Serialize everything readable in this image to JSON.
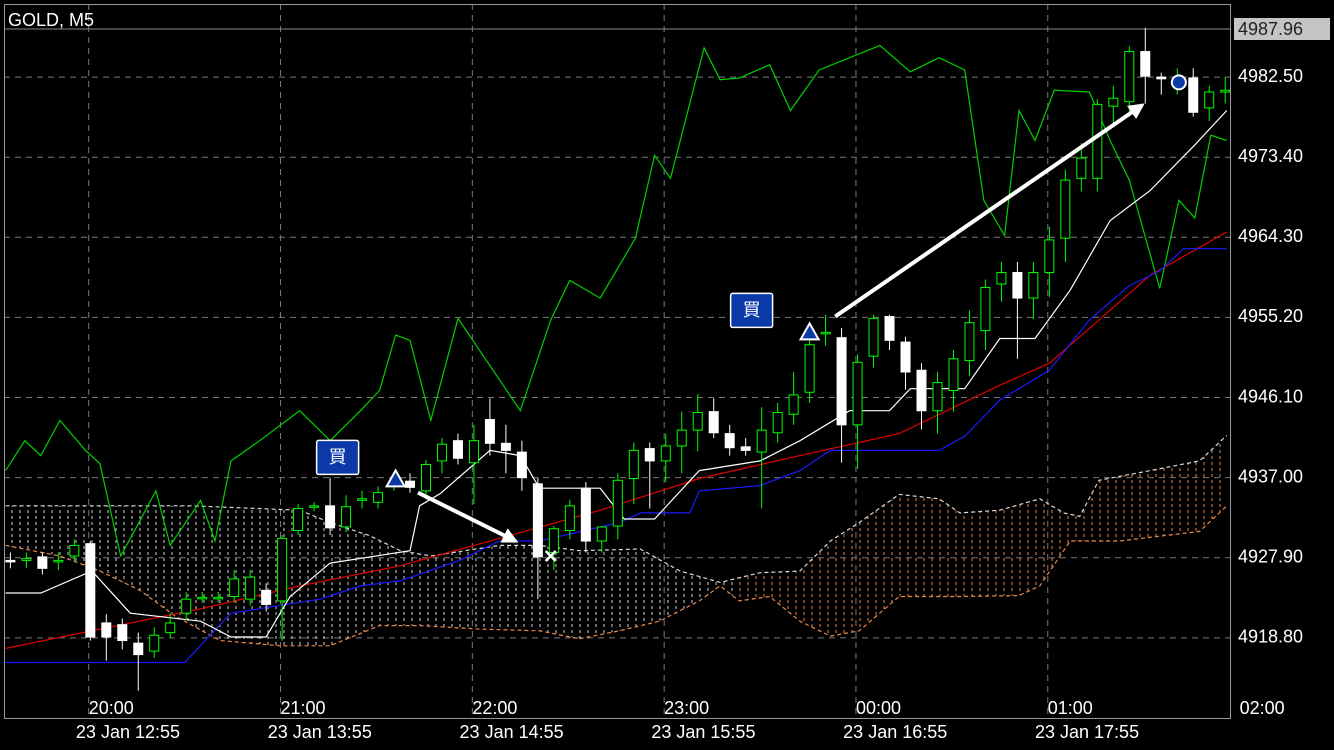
{
  "chart_data": {
    "type": "candlestick",
    "title": "GOLD, M5",
    "xlim": [
      -0.4,
      76.3
    ],
    "ylim": [
      4909.7,
      4990.8
    ],
    "yticks": [
      {
        "value": 4918.8,
        "label": "4918.80"
      },
      {
        "value": 4927.9,
        "label": "4927.90"
      },
      {
        "value": 4937,
        "label": "4937.00"
      },
      {
        "value": 4946.1,
        "label": "4946.10"
      },
      {
        "value": 4955.2,
        "label": "4955.20"
      },
      {
        "value": 4964.3,
        "label": "4964.30"
      },
      {
        "value": 4973.4,
        "label": "4973.40"
      },
      {
        "value": 4982.5,
        "label": "4982.50"
      }
    ],
    "xticks": [
      {
        "value": 4.9,
        "label": "20:00"
      },
      {
        "value": 16.9,
        "label": "21:00"
      },
      {
        "value": 28.9,
        "label": "22:00"
      },
      {
        "value": 40.9,
        "label": "23:00"
      },
      {
        "value": 52.9,
        "label": "00:00"
      },
      {
        "value": 64.9,
        "label": "01:00"
      },
      {
        "value": 76.9,
        "label": "02:00"
      }
    ],
    "date_labels": [
      {
        "value": 4.1,
        "label": "23 Jan 12:55"
      },
      {
        "value": 16.1,
        "label": "23 Jan 13:55"
      },
      {
        "value": 28.1,
        "label": "23 Jan 14:55"
      },
      {
        "value": 40.1,
        "label": "23 Jan 15:55"
      },
      {
        "value": 52.1,
        "label": "23 Jan 16:55"
      },
      {
        "value": 64.1,
        "label": "23 Jan 17:55"
      }
    ],
    "grid": true,
    "price_marker": 4987.96,
    "up_color": "#00ff00",
    "down_color": "#ffffff",
    "candles": {
      "x": [
        0,
        1,
        2,
        3,
        4,
        5,
        6,
        7,
        8,
        9,
        10,
        11,
        12,
        13,
        14,
        15,
        16,
        17,
        18,
        19,
        20,
        21,
        22,
        23,
        24,
        25,
        26,
        27,
        28,
        29,
        30,
        31,
        32,
        33,
        34,
        35,
        36,
        37,
        38,
        39,
        40,
        41,
        42,
        43,
        44,
        45,
        46,
        47,
        48,
        49,
        50,
        51,
        52,
        53,
        54,
        55,
        56,
        57,
        58,
        59,
        60,
        61,
        62,
        63,
        64,
        65,
        66,
        67,
        68,
        69,
        70,
        71,
        72,
        73,
        74,
        75,
        76
      ],
      "open": [
        4927.6,
        4927.6,
        4928.0,
        4927.5,
        4928.1,
        4929.5,
        4920.5,
        4920.3,
        4918.2,
        4917.3,
        4919.4,
        4921.6,
        4923.3,
        4923.4,
        4923.5,
        4923.2,
        4924.2,
        4923.0,
        4931.0,
        4933.7,
        4933.8,
        4931.4,
        4934.5,
        4934.2,
        4936.2,
        4936.6,
        4935.5,
        4938.9,
        4941.2,
        4938.7,
        4943.6,
        4940.9,
        4939.9,
        4936.3,
        4928.5,
        4931.0,
        4935.8,
        4929.8,
        4931.5,
        4936.9,
        4940.3,
        4938.9,
        4940.6,
        4942.4,
        4944.5,
        4942.0,
        4940.5,
        4939.9,
        4942.1,
        4944.2,
        4946.7,
        4953.4,
        4952.9,
        4943.0,
        4950.8,
        4955.3,
        4952.4,
        4949.2,
        4944.6,
        4946.9,
        4950.3,
        4953.7,
        4959.0,
        4960.3,
        4957.4,
        4960.3,
        4964.2,
        4971.0,
        4971.0,
        4979.2,
        4979.7,
        4985.4,
        4982.5,
        4982.1,
        4982.4,
        4979.0,
        4980.8
      ],
      "high": [
        4928.5,
        4928.5,
        4928.5,
        4928.5,
        4930.0,
        4929.8,
        4921.5,
        4921.0,
        4919.4,
        4920.0,
        4921.6,
        4924.0,
        4924.0,
        4924.0,
        4926.5,
        4926.5,
        4925.0,
        4930.5,
        4934.0,
        4934.2,
        4937.0,
        4935.0,
        4935.5,
        4936.0,
        4937.0,
        4937.5,
        4939.0,
        4941.5,
        4942.0,
        4943.0,
        4946.0,
        4943.0,
        4941.2,
        4937.0,
        4931.5,
        4934.5,
        4936.5,
        4931.5,
        4937.5,
        4941.0,
        4941.0,
        4942.0,
        4944.5,
        4946.5,
        4946.0,
        4943.0,
        4941.5,
        4945.0,
        4945.5,
        4949.0,
        4953.0,
        4955.5,
        4954.0,
        4951.0,
        4955.5,
        4955.5,
        4953.0,
        4950.0,
        4949.0,
        4951.5,
        4956.0,
        4959.5,
        4961.5,
        4961.5,
        4961.5,
        4965.5,
        4972.0,
        4975.0,
        4980.0,
        4981.5,
        4986.0,
        4988.1,
        4983.0,
        4983.5,
        4983.5,
        4981.5,
        4982.5
      ],
      "low": [
        4926.7,
        4926.7,
        4926.0,
        4926.5,
        4927.5,
        4918.5,
        4916.2,
        4917.5,
        4912.8,
        4916.5,
        4918.8,
        4920.8,
        4922.8,
        4922.8,
        4922.8,
        4922.5,
        4921.8,
        4918.5,
        4930.5,
        4933.2,
        4930.5,
        4930.8,
        4933.5,
        4933.5,
        4935.5,
        4935.3,
        4934.5,
        4937.5,
        4938.5,
        4934.0,
        4939.5,
        4937.5,
        4935.5,
        4923.2,
        4926.5,
        4930.0,
        4928.5,
        4928.5,
        4930.0,
        4934.0,
        4933.5,
        4936.5,
        4937.5,
        4940.0,
        4941.5,
        4939.5,
        4939.5,
        4933.5,
        4941.0,
        4943.0,
        4945.5,
        4952.0,
        4938.7,
        4938.0,
        4949.5,
        4951.5,
        4947.0,
        4942.5,
        4942.0,
        4944.5,
        4948.5,
        4951.5,
        4957.0,
        4950.5,
        4955.0,
        4957.5,
        4961.5,
        4969.5,
        4969.5,
        4977.0,
        4978.0,
        4979.5,
        4980.5,
        4980.5,
        4978.0,
        4977.5,
        4979.5
      ],
      "close": [
        4927.5,
        4927.8,
        4926.7,
        4927.6,
        4929.3,
        4918.9,
        4918.9,
        4918.5,
        4916.9,
        4919.1,
        4920.5,
        4923.2,
        4923.4,
        4923.4,
        4925.5,
        4925.7,
        4922.6,
        4930.1,
        4933.5,
        4933.8,
        4931.3,
        4933.7,
        4934.6,
        4935.3,
        4936.3,
        4935.9,
        4938.5,
        4940.8,
        4939.2,
        4941.2,
        4940.9,
        4940.1,
        4937.0,
        4928.0,
        4931.2,
        4933.8,
        4929.8,
        4931.4,
        4936.7,
        4940.1,
        4938.9,
        4940.6,
        4942.4,
        4944.4,
        4942.1,
        4940.4,
        4940.1,
        4942.4,
        4944.4,
        4946.4,
        4952.1,
        4953.5,
        4943.0,
        4950.1,
        4955.1,
        4952.6,
        4949.0,
        4944.6,
        4947.8,
        4950.5,
        4954.6,
        4958.6,
        4960.3,
        4957.4,
        4960.3,
        4964.0,
        4970.8,
        4973.3,
        4979.4,
        4980.1,
        4985.4,
        4982.6,
        4982.3,
        4982.2,
        4978.5,
        4980.8,
        4981.0
      ]
    },
    "cloud": {
      "color": "#e8894a",
      "left_color": "#cfcfcf",
      "split": 45.6
    },
    "lines": [
      {
        "color": "#d9d9d9",
        "dashed": true,
        "x": [
          -0.3,
          11.3,
          18.1,
          20,
          22.5,
          24.4,
          26.3,
          30.6,
          33.1,
          35.6,
          39.4,
          41.9,
          44.4,
          46.9,
          49.4,
          51.3,
          53.1,
          55.6,
          58.1,
          59.4,
          61.9,
          64.4,
          65.9,
          66.9,
          68.1,
          71.3,
          74.4,
          76.1
        ],
        "values": [
          4933.8,
          4933.8,
          4933.3,
          4931.9,
          4930.4,
          4928.7,
          4928.1,
          4929.3,
          4929.3,
          4928.7,
          4928.9,
          4926.4,
          4925.1,
          4926.2,
          4926.4,
          4929.8,
          4931.9,
          4935.1,
          4934.6,
          4933.0,
          4933.3,
          4934.6,
          4933.0,
          4932.6,
          4936.7,
          4937.8,
          4938.9,
          4941.8
        ]
      },
      {
        "color": "#e8894a",
        "dashed": true,
        "x": [
          -0.3,
          3.1,
          5.6,
          8.1,
          10.3,
          13.1,
          16.9,
          20,
          23.1,
          25.6,
          29.4,
          33.1,
          35.6,
          38.1,
          40.6,
          43.1,
          44.4,
          45.6,
          47.5,
          49.4,
          51.3,
          53.1,
          55.6,
          59.4,
          63.1,
          64.4,
          66.3,
          69.4,
          74.4,
          76.1
        ],
        "values": [
          4929.3,
          4928.1,
          4926.4,
          4924.2,
          4921.3,
          4918.5,
          4917.9,
          4917.9,
          4920.2,
          4920.2,
          4919.8,
          4919.6,
          4918.7,
          4919.6,
          4920.7,
          4923.0,
          4924.7,
          4923.0,
          4923.5,
          4920.7,
          4919.0,
          4919.6,
          4923.5,
          4923.5,
          4923.6,
          4924.7,
          4929.8,
          4929.8,
          4930.9,
          4933.8
        ]
      },
      {
        "color": "#00d000",
        "x": [
          -0.3,
          0.9,
          1.9,
          3.1,
          4.7,
          5.6,
          6.9,
          8.1,
          9.1,
          10,
          11.9,
          12.8,
          13.8,
          15.6,
          18.1,
          20,
          21.9,
          23.1,
          24.1,
          25,
          26.3,
          28,
          31.9,
          33.8,
          35,
          36.9,
          39.1,
          40.3,
          41.3,
          43.4,
          44.4,
          45.6,
          47.5,
          48.8,
          50.6,
          54.4,
          56.3,
          58.1,
          59.7,
          60.9,
          62.2,
          63.1,
          64.1,
          65.3,
          67.5,
          68.8,
          70,
          71.9,
          73.1,
          74.1,
          75.1,
          76.1
        ],
        "values": [
          4937.8,
          4941.2,
          4939.5,
          4943.5,
          4940.1,
          4938.6,
          4928.1,
          4932.1,
          4935.5,
          4929.3,
          4934.4,
          4929.8,
          4938.9,
          4941.2,
          4944.6,
          4941.2,
          4944.6,
          4946.9,
          4953.2,
          4952.6,
          4943.5,
          4955.1,
          4944.6,
          4954.9,
          4959.4,
          4957.4,
          4964.2,
          4973.6,
          4971.0,
          4985.8,
          4982.2,
          4982.4,
          4983.9,
          4978.7,
          4983.3,
          4986.1,
          4983.1,
          4984.7,
          4983.3,
          4968.5,
          4964.5,
          4978.7,
          4975.3,
          4981.0,
          4980.8,
          4975.3,
          4970.8,
          4958.5,
          4968.5,
          4966.5,
          4975.9,
          4975.3
        ]
      },
      {
        "color": "#e00000",
        "x": [
          -0.3,
          5.6,
          11.9,
          18.1,
          24.4,
          30.6,
          36.9,
          43.1,
          49.4,
          55.6,
          61.9,
          65,
          68.1,
          71.3,
          76.1
        ],
        "values": [
          4917.6,
          4919.8,
          4922.1,
          4924.7,
          4927.0,
          4930.1,
          4933.3,
          4936.9,
          4939.5,
          4942.0,
          4947.5,
          4950.0,
          4954.9,
          4960.0,
          4964.9
        ]
      },
      {
        "color": "#1a1aff",
        "x": [
          -0.3,
          10.9,
          13.8,
          19.4,
          21.9,
          24.4,
          28.1,
          30.6,
          33.1,
          38.1,
          39.4,
          42.5,
          43.1,
          46.9,
          49.4,
          51.3,
          58.1,
          59.7,
          61.9,
          65,
          67.5,
          70,
          71.9,
          73.4,
          76.1
        ],
        "values": [
          4916.0,
          4916.0,
          4921.6,
          4923.2,
          4924.7,
          4925.3,
          4927.6,
          4929.8,
          4929.8,
          4931.9,
          4933.0,
          4933.0,
          4935.5,
          4936.1,
          4937.8,
          4940.1,
          4940.1,
          4941.7,
          4945.8,
          4949.2,
          4954.9,
          4958.8,
          4960.5,
          4963.0,
          4963.0
        ]
      },
      {
        "color": "#ffffff",
        "x": [
          -0.3,
          1.9,
          5.1,
          7.5,
          11.9,
          13.8,
          16,
          17.5,
          20,
          25,
          25.6,
          26.9,
          30,
          31.9,
          33.1,
          36.9,
          38.4,
          40.3,
          43.1,
          46.9,
          49.4,
          52.5,
          55,
          56.3,
          59.7,
          61.9,
          64.1,
          66.3,
          68.8,
          71.3,
          74.1,
          76.1
        ],
        "values": [
          4923.9,
          4923.9,
          4926.4,
          4921.6,
          4920.7,
          4918.9,
          4918.9,
          4923.5,
          4927.3,
          4928.7,
          4933.8,
          4935.2,
          4940.1,
          4939.5,
          4935.8,
          4935.8,
          4932.3,
          4932.3,
          4937.8,
          4938.9,
          4941.2,
          4944.6,
          4944.6,
          4947.1,
          4947.1,
          4952.8,
          4952.8,
          4958.3,
          4966.2,
          4969.6,
          4974.8,
          4978.7
        ]
      }
    ],
    "arrows": [
      {
        "x": [
          25.5,
          31.6
        ],
        "y": [
          4935.3,
          4929.8
        ]
      },
      {
        "x": [
          51.6,
          70.8
        ],
        "y": [
          4955.3,
          4979.3
        ]
      }
    ],
    "markers": [
      {
        "shape": "triangle",
        "x": 24.1,
        "y": 4936.8,
        "label": "買"
      },
      {
        "shape": "triangle",
        "x": 50,
        "y": 4953.5,
        "label": "買"
      },
      {
        "shape": "cross",
        "x": 33.8,
        "y": 4928.1
      },
      {
        "shape": "circle",
        "x": 73.1,
        "y": 4981.9
      }
    ]
  }
}
